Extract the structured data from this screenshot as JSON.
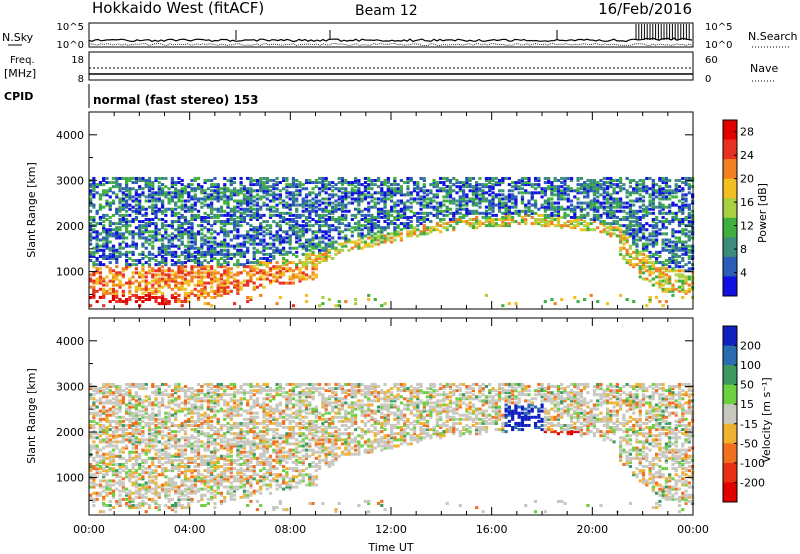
{
  "header": {
    "station": "Hokkaido West (fitACF)",
    "beam": "Beam 12",
    "date": "16/Feb/2016"
  },
  "summary": {
    "nsky_label": "N.Sky",
    "nsearch_label": "N.Search",
    "freq_label": "Freq.",
    "freq_unit": "[MHz]",
    "nave_label": "Nave",
    "cpid_label": "CPID",
    "cpid_value": "normal (fast stereo) 153",
    "noise_ticks_left": [
      "10^5",
      "10^0"
    ],
    "noise_ticks_right": [
      "10^5",
      "10^0"
    ],
    "freq_ticks": [
      "18",
      "8"
    ],
    "nave_ticks": [
      "60",
      "0"
    ]
  },
  "chart_data": [
    {
      "type": "heatmap",
      "name": "power",
      "ylabel": "Slant Range [km]",
      "xlim": [
        "00:00",
        "24:00"
      ],
      "ylim": [
        180,
        4500
      ],
      "y_ticks": [
        1000,
        2000,
        3000,
        4000
      ],
      "colorbar_label": "Power [dB]",
      "colorbar_ticks": [
        4,
        8,
        12,
        16,
        20,
        24,
        28
      ],
      "colorbar_range": [
        0,
        30
      ],
      "colors": [
        "#1010e0",
        "#2a5cb8",
        "#3c8c7c",
        "#3fb040",
        "#a8d040",
        "#f0c020",
        "#f08020",
        "#e83020",
        "#e00000"
      ]
    },
    {
      "type": "heatmap",
      "name": "velocity",
      "ylabel": "Slant Range [km]",
      "xlabel": "Time UT",
      "xlim": [
        "00:00",
        "24:00"
      ],
      "ylim": [
        180,
        4500
      ],
      "y_ticks": [
        1000,
        2000,
        3000,
        4000
      ],
      "x_ticks": [
        "00:00",
        "04:00",
        "08:00",
        "12:00",
        "16:00",
        "20:00",
        "00:00"
      ],
      "colorbar_label": "Velocity [m s⁻¹]",
      "colorbar_ticks": [
        200,
        100,
        50,
        15,
        -15,
        -50,
        -100,
        -200
      ],
      "colors": [
        "#1020c0",
        "#2a6cb0",
        "#3c9a60",
        "#6cd040",
        "#c8c8c0",
        "#f0b030",
        "#f07020",
        "#e83010",
        "#e00000"
      ]
    }
  ]
}
